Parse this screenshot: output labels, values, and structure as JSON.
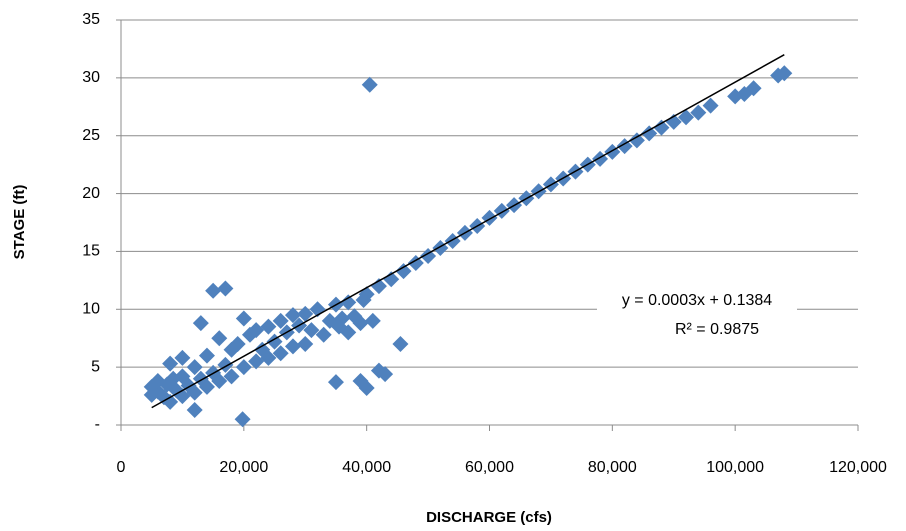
{
  "chart_data": {
    "type": "scatter",
    "x_label": "DISCHARGE (cfs)",
    "y_label": "STAGE (ft)",
    "color": "#4f81bd",
    "x": [
      40500,
      19800,
      15000,
      17000,
      35000,
      39000,
      40000,
      42000,
      43000,
      45500,
      12000,
      13000,
      20000,
      10000,
      8000,
      40000,
      42000,
      44000,
      46000,
      48000,
      50000,
      52000,
      54000,
      56000,
      58000,
      60000,
      62000,
      64000,
      66000,
      68000,
      70000,
      72000,
      74000,
      76000,
      78000,
      80000,
      82000,
      84000,
      86000,
      88000,
      90000,
      92000,
      94000,
      96000,
      100000,
      101500,
      103000,
      107000,
      108000,
      5000,
      5000,
      6000,
      6000,
      7000,
      7500,
      8000,
      8500,
      9000,
      10000,
      10000,
      11000,
      12000,
      12000,
      13000,
      14000,
      14000,
      15000,
      16000,
      16000,
      17000,
      18000,
      18000,
      19000,
      20000,
      21000,
      22000,
      22000,
      23000,
      24000,
      24000,
      25000,
      26000,
      26000,
      27000,
      28000,
      28000,
      29000,
      30000,
      30000,
      31000,
      32000,
      33000,
      34000,
      35000,
      35500,
      36000,
      37000,
      37000,
      38000,
      39000,
      39500,
      41000
    ],
    "y": [
      29.4,
      0.5,
      11.6,
      11.8,
      3.7,
      3.8,
      3.2,
      4.7,
      4.4,
      7.0,
      1.3,
      8.8,
      9.2,
      5.8,
      5.3,
      11.3,
      12.0,
      12.6,
      13.3,
      14.0,
      14.6,
      15.3,
      15.9,
      16.6,
      17.2,
      17.9,
      18.5,
      19.0,
      19.6,
      20.2,
      20.8,
      21.3,
      21.9,
      22.5,
      23.0,
      23.6,
      24.1,
      24.6,
      25.2,
      25.7,
      26.2,
      26.6,
      27.0,
      27.6,
      28.4,
      28.6,
      29.1,
      30.2,
      30.4,
      2.6,
      3.3,
      2.9,
      3.8,
      2.4,
      3.5,
      2.0,
      4.0,
      3.0,
      2.5,
      4.2,
      3.4,
      2.8,
      5.0,
      4.0,
      3.3,
      6.0,
      4.5,
      7.5,
      3.8,
      5.2,
      6.5,
      4.2,
      7.0,
      5.0,
      7.8,
      5.5,
      8.2,
      6.5,
      8.5,
      5.8,
      7.2,
      9.0,
      6.2,
      8.0,
      9.5,
      6.8,
      8.6,
      9.6,
      7.0,
      8.2,
      10.0,
      7.8,
      9.0,
      10.4,
      8.5,
      9.2,
      10.6,
      8.0,
      9.4,
      8.8,
      10.8,
      9.0
    ],
    "xlim": [
      0,
      120000
    ],
    "ylim": [
      0,
      35
    ],
    "xticks": [
      0,
      {
        "value": 20000,
        "label": "20,000"
      },
      {
        "value": 40000,
        "label": "40,000"
      },
      {
        "value": 60000,
        "label": "60,000"
      },
      {
        "value": 80000,
        "label": "80,000"
      },
      {
        "value": 100000,
        "label": "100,000"
      },
      {
        "value": 120000,
        "label": "120,000"
      }
    ],
    "yticks": [
      {
        "value": 0,
        "label": "-"
      },
      5,
      10,
      15,
      20,
      25,
      30,
      35
    ],
    "grid": true,
    "trendline": {
      "x": [
        5000,
        108000
      ],
      "y": [
        1.5,
        32
      ],
      "color": "#000000",
      "equation": "y = 0.0003x + 0.1384",
      "r2": "R² = 0.9875"
    }
  }
}
